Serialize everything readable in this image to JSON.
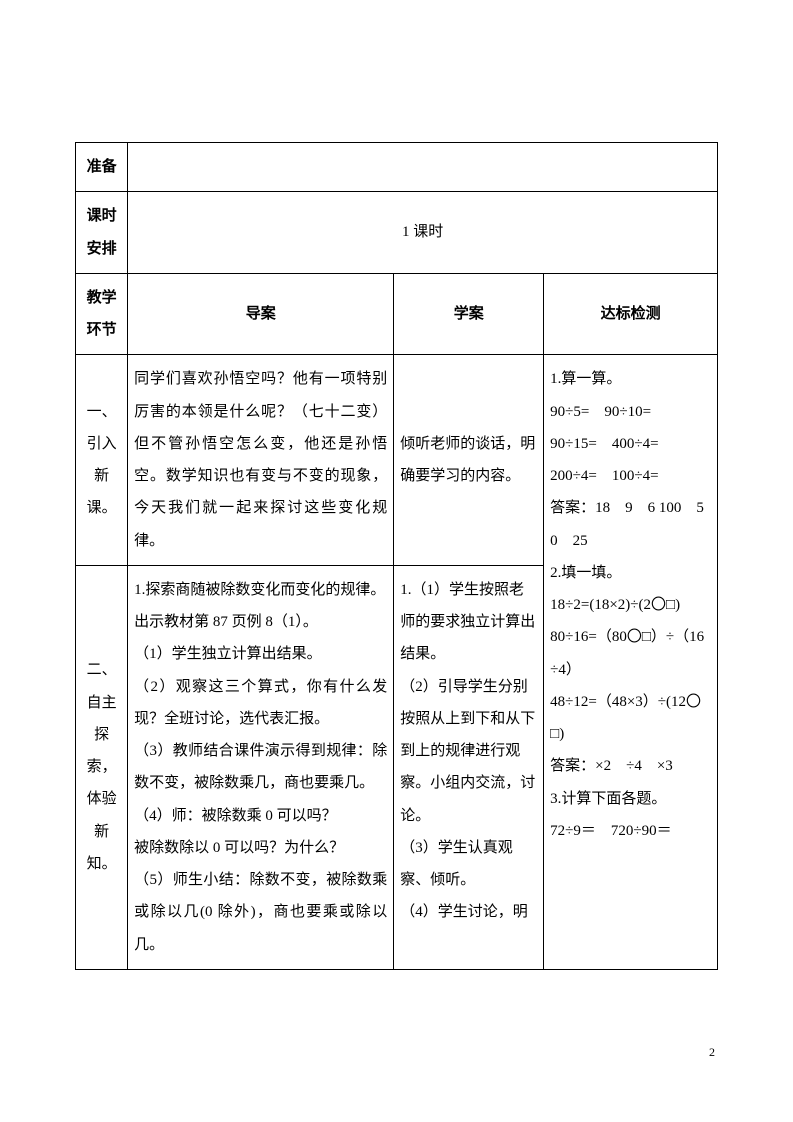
{
  "rows": {
    "prep_label": "准备",
    "prep_value": "",
    "sched_label": "课时安排",
    "sched_value": "1 课时",
    "env_label": "教学环节",
    "env_c2": "导案",
    "env_c3": "学案",
    "env_c4": "达标检测"
  },
  "section1": {
    "label": "一、引入新课。",
    "daoan": "同学们喜欢孙悟空吗？他有一项特别厉害的本领是什么呢？（七十二变）但不管孙悟空怎么变，他还是孙悟空。数学知识也有变与不变的现象，今天我们就一起来探讨这些变化规律。",
    "xuean": "倾听老师的谈话，明确要学习的内容。"
  },
  "section2": {
    "label": "二、自主探索，体验新知。",
    "daoan_lines": [
      "1.探索商随被除数变化而变化的规律。",
      "出示教材第 87 页例 8（1）。",
      "（1）学生独立计算出结果。",
      "（2）观察这三个算式，你有什么发现？全班讨论，选代表汇报。",
      "（3）教师结合课件演示得到规律：除数不变，被除数乘几，商也要乘几。",
      "（4）师：被除数乘 0 可以吗？",
      "被除数除以 0 可以吗？为什么？",
      "（5）师生小结：除数不变，被除数乘或除以几(0 除外)，商也要乘或除以几。"
    ],
    "xuean_lines": [
      "1.（1）学生按照老师的要求独立计算出结果。",
      "（2）引导学生分别按照从上到下和从下到上的规律进行观察。小组内交流，讨论。",
      "（3）学生认真观察、倾听。",
      "（4）学生讨论，明"
    ]
  },
  "dabiao_lines": [
    "1.算一算。",
    "90÷5=　90÷10=",
    "90÷15=　400÷4=",
    "200÷4=　100÷4=",
    "答案：18　9　6 100　50　25",
    "2.填一填。",
    "18÷2=(18×2)÷(2〇□)",
    "80÷16=（80〇□）÷（16÷4）",
    "48÷12=（48×3）÷(12〇□)",
    "答案：×2　÷4　×3",
    "3.计算下面各题。",
    "72÷9＝　720÷90＝"
  ],
  "page_number": "2"
}
